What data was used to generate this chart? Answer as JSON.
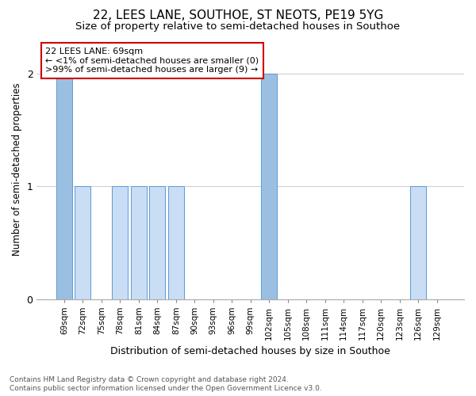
{
  "title1": "22, LEES LANE, SOUTHOE, ST NEOTS, PE19 5YG",
  "title2": "Size of property relative to semi-detached houses in Southoe",
  "xlabel": "Distribution of semi-detached houses by size in Southoe",
  "ylabel": "Number of semi-detached properties",
  "footnote1": "Contains HM Land Registry data © Crown copyright and database right 2024.",
  "footnote2": "Contains public sector information licensed under the Open Government Licence v3.0.",
  "categories": [
    "69sqm",
    "72sqm",
    "75sqm",
    "78sqm",
    "81sqm",
    "84sqm",
    "87sqm",
    "90sqm",
    "93sqm",
    "96sqm",
    "99sqm",
    "102sqm",
    "105sqm",
    "108sqm",
    "111sqm",
    "114sqm",
    "117sqm",
    "120sqm",
    "123sqm",
    "126sqm",
    "129sqm"
  ],
  "values": [
    2,
    1,
    0,
    1,
    1,
    1,
    1,
    0,
    0,
    0,
    0,
    2,
    0,
    0,
    0,
    0,
    0,
    0,
    0,
    1,
    0
  ],
  "highlight_indices": [
    0,
    11
  ],
  "bar_color": "#c9ddf5",
  "highlight_bar_color": "#9bbfe0",
  "bar_edge_color": "#5b9bd5",
  "annotation_line1": "22 LEES LANE: 69sqm",
  "annotation_line2": "← <1% of semi-detached houses are smaller (0)",
  "annotation_line3": ">99% of semi-detached houses are larger (9) →",
  "annotation_box_color": "#ffffff",
  "annotation_box_edge": "#cc0000",
  "ylim": [
    0,
    2.3
  ],
  "yticks": [
    0,
    1,
    2
  ],
  "background_color": "#ffffff",
  "grid_color": "#d0d0d0",
  "title1_fontsize": 11,
  "title2_fontsize": 9.5
}
